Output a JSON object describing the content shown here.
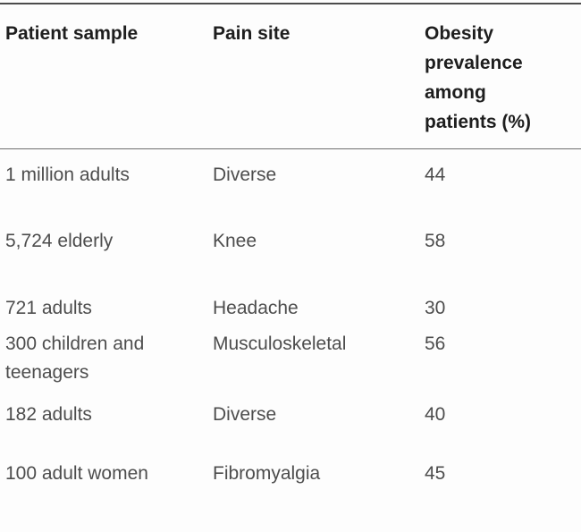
{
  "table": {
    "columns": [
      {
        "label": "Patient sample"
      },
      {
        "label": "Pain site"
      },
      {
        "label": "Obesity prevalence among patients (%)"
      }
    ],
    "rows": [
      {
        "patient_sample": "1 million adults",
        "pain_site": "Diverse",
        "obesity_prevalence": "44"
      },
      {
        "patient_sample": "5,724 elderly",
        "pain_site": "Knee",
        "obesity_prevalence": "58"
      },
      {
        "patient_sample": "721 adults",
        "pain_site": "Headache",
        "obesity_prevalence": "30"
      },
      {
        "patient_sample": "300 children and teenagers",
        "pain_site": "Musculoskeletal",
        "obesity_prevalence": "56"
      },
      {
        "patient_sample": "182 adults",
        "pain_site": "Diverse",
        "obesity_prevalence": "40"
      },
      {
        "patient_sample": "100 adult women",
        "pain_site": "Fibromyalgia",
        "obesity_prevalence": "45"
      }
    ],
    "colors": {
      "header_text": "#1e1e1e",
      "body_text": "#4d4d4d",
      "top_rule": "#4c4c4c",
      "header_rule": "#6e6e6e",
      "background": "#fdfdfd"
    }
  }
}
